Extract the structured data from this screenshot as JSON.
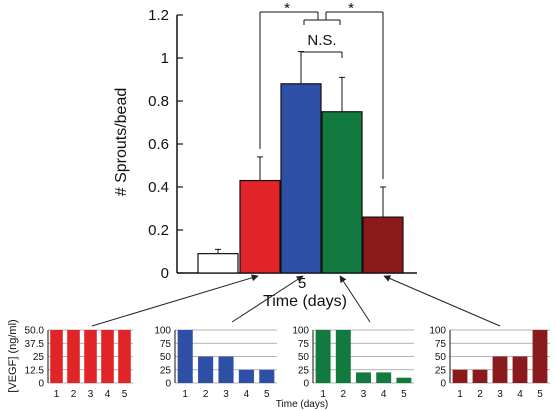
{
  "chart_data": [
    {
      "type": "bar",
      "ylabel": "# Sprouts/bead",
      "xlabel": "Time (days)",
      "x_tick": "5",
      "ylim": [
        0,
        1.2
      ],
      "yticks": [
        "0",
        "0.2",
        "0.4",
        "0.6",
        "0.8",
        "1",
        "1.2"
      ],
      "values": [
        0.09,
        0.43,
        0.88,
        0.75,
        0.26
      ],
      "errors": [
        0.02,
        0.11,
        0.15,
        0.16,
        0.14
      ],
      "colors": [
        "#ffffff",
        "#e02427",
        "#2e4fa6",
        "#127a3e",
        "#8b1a1d"
      ],
      "annotations": {
        "sig_left": "*",
        "sig_right": "*",
        "ns": "N.S."
      }
    },
    {
      "type": "bar",
      "categories": [
        "1",
        "2",
        "3",
        "4",
        "5"
      ],
      "values": [
        50,
        50,
        50,
        50,
        50
      ],
      "ylim": [
        0,
        50
      ],
      "yticks": [
        "0",
        "12.5",
        "25",
        "37.5",
        "50.0"
      ],
      "ylabel": "[VEGF] (ng/ml)",
      "color": "#e02427"
    },
    {
      "type": "bar",
      "categories": [
        "1",
        "2",
        "3",
        "4",
        "5"
      ],
      "values": [
        100,
        50,
        50,
        25,
        25
      ],
      "ylim": [
        0,
        100
      ],
      "yticks": [
        "0",
        "25",
        "50",
        "75",
        "100"
      ],
      "color": "#2e4fa6"
    },
    {
      "type": "bar",
      "categories": [
        "1",
        "2",
        "3",
        "4",
        "5"
      ],
      "values": [
        100,
        100,
        20,
        20,
        10
      ],
      "ylim": [
        0,
        100
      ],
      "yticks": [
        "0",
        "25",
        "50",
        "75",
        "100"
      ],
      "color": "#127a3e"
    },
    {
      "type": "bar",
      "categories": [
        "1",
        "2",
        "3",
        "4",
        "5"
      ],
      "values": [
        25,
        25,
        50,
        50,
        100
      ],
      "ylim": [
        0,
        100
      ],
      "yticks": [
        "0",
        "25",
        "50",
        "75",
        "100"
      ],
      "color": "#8b1a1d"
    }
  ],
  "small_xlabel": "Time (days)"
}
